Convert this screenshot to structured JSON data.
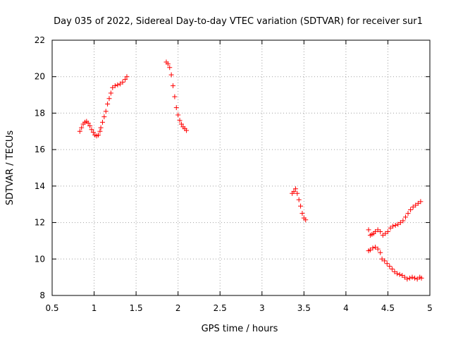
{
  "chart_data": {
    "type": "scatter",
    "title": "Day 035 of 2022, Sidereal Day-to-day VTEC variation (SDTVAR) for receiver sur1",
    "xlabel": "GPS time / hours",
    "ylabel": "SDTVAR / TECUs",
    "xlim": [
      0.5,
      5
    ],
    "ylim": [
      8,
      22
    ],
    "x_ticks": [
      "0.5",
      "1",
      "1.5",
      "2",
      "2.5",
      "3",
      "3.5",
      "4",
      "4.5",
      "5"
    ],
    "y_ticks": [
      "8",
      "10",
      "12",
      "14",
      "16",
      "18",
      "20",
      "22"
    ],
    "grid": true,
    "marker": "plus",
    "series": [
      {
        "name": "sur1",
        "color": "#ff0000",
        "points": [
          [
            0.83,
            17.0
          ],
          [
            0.85,
            17.2
          ],
          [
            0.87,
            17.4
          ],
          [
            0.89,
            17.5
          ],
          [
            0.91,
            17.55
          ],
          [
            0.93,
            17.45
          ],
          [
            0.95,
            17.3
          ],
          [
            0.97,
            17.1
          ],
          [
            0.99,
            16.95
          ],
          [
            1.01,
            16.8
          ],
          [
            1.03,
            16.75
          ],
          [
            1.05,
            16.8
          ],
          [
            1.07,
            17.0
          ],
          [
            1.08,
            17.2
          ],
          [
            1.1,
            17.5
          ],
          [
            1.12,
            17.8
          ],
          [
            1.14,
            18.1
          ],
          [
            1.16,
            18.5
          ],
          [
            1.18,
            18.8
          ],
          [
            1.2,
            19.1
          ],
          [
            1.22,
            19.4
          ],
          [
            1.25,
            19.5
          ],
          [
            1.28,
            19.55
          ],
          [
            1.31,
            19.6
          ],
          [
            1.34,
            19.7
          ],
          [
            1.37,
            19.85
          ],
          [
            1.39,
            20.0
          ],
          [
            1.86,
            20.8
          ],
          [
            1.88,
            20.7
          ],
          [
            1.9,
            20.5
          ],
          [
            1.92,
            20.1
          ],
          [
            1.94,
            19.5
          ],
          [
            1.96,
            18.9
          ],
          [
            1.98,
            18.3
          ],
          [
            2.0,
            17.9
          ],
          [
            2.02,
            17.6
          ],
          [
            2.04,
            17.4
          ],
          [
            2.06,
            17.25
          ],
          [
            2.08,
            17.15
          ],
          [
            2.1,
            17.05
          ],
          [
            3.36,
            13.6
          ],
          [
            3.38,
            13.7
          ],
          [
            3.4,
            13.85
          ],
          [
            3.42,
            13.6
          ],
          [
            3.44,
            13.25
          ],
          [
            3.46,
            12.9
          ],
          [
            3.48,
            12.5
          ],
          [
            3.5,
            12.25
          ],
          [
            3.52,
            12.15
          ],
          [
            4.27,
            11.6
          ],
          [
            4.29,
            11.3
          ],
          [
            4.31,
            11.35
          ],
          [
            4.33,
            11.4
          ],
          [
            4.35,
            11.5
          ],
          [
            4.38,
            11.6
          ],
          [
            4.41,
            11.5
          ],
          [
            4.44,
            11.3
          ],
          [
            4.47,
            11.4
          ],
          [
            4.5,
            11.5
          ],
          [
            4.53,
            11.7
          ],
          [
            4.56,
            11.8
          ],
          [
            4.59,
            11.85
          ],
          [
            4.62,
            11.9
          ],
          [
            4.65,
            12.0
          ],
          [
            4.68,
            12.1
          ],
          [
            4.71,
            12.3
          ],
          [
            4.74,
            12.5
          ],
          [
            4.77,
            12.7
          ],
          [
            4.8,
            12.85
          ],
          [
            4.83,
            12.95
          ],
          [
            4.86,
            13.05
          ],
          [
            4.89,
            13.15
          ],
          [
            4.27,
            10.45
          ],
          [
            4.29,
            10.5
          ],
          [
            4.32,
            10.6
          ],
          [
            4.35,
            10.65
          ],
          [
            4.38,
            10.55
          ],
          [
            4.41,
            10.35
          ],
          [
            4.43,
            10.0
          ],
          [
            4.46,
            9.9
          ],
          [
            4.49,
            9.75
          ],
          [
            4.52,
            9.6
          ],
          [
            4.55,
            9.45
          ],
          [
            4.58,
            9.3
          ],
          [
            4.61,
            9.2
          ],
          [
            4.64,
            9.15
          ],
          [
            4.67,
            9.1
          ],
          [
            4.7,
            9.0
          ],
          [
            4.73,
            8.9
          ],
          [
            4.76,
            8.95
          ],
          [
            4.79,
            9.0
          ],
          [
            4.82,
            8.95
          ],
          [
            4.85,
            8.9
          ],
          [
            4.88,
            9.0
          ],
          [
            4.9,
            8.95
          ]
        ]
      }
    ]
  }
}
